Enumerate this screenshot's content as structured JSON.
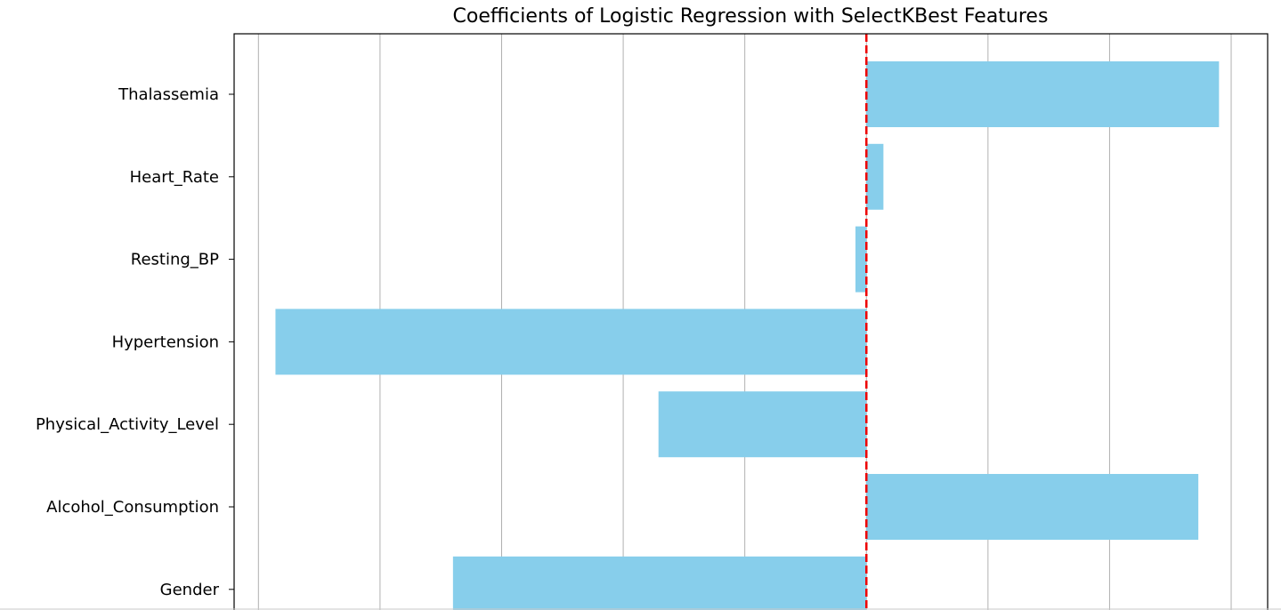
{
  "chart_data": {
    "type": "bar",
    "orientation": "horizontal",
    "title": "Coefficients of Logistic Regression with SelectKBest Features",
    "xlabel": "",
    "ylabel": "",
    "categories": [
      "Thalassemia",
      "Heart_Rate",
      "Resting_BP",
      "Hypertension",
      "Physical_Activity_Level",
      "Alcohol_Consumption",
      "Gender"
    ],
    "values": [
      0.29,
      0.014,
      -0.009,
      -0.486,
      -0.171,
      0.273,
      -0.34
    ],
    "xlim": [
      -0.52,
      0.33
    ],
    "x_gridlines": [
      -0.5,
      -0.4,
      -0.3,
      -0.2,
      -0.1,
      0.0,
      0.1,
      0.2,
      0.3
    ],
    "reference_line": {
      "x": 0,
      "style": "dashed",
      "color": "#ee0000"
    },
    "bar_color": "#87ceeb",
    "grid": "x-axis only"
  }
}
